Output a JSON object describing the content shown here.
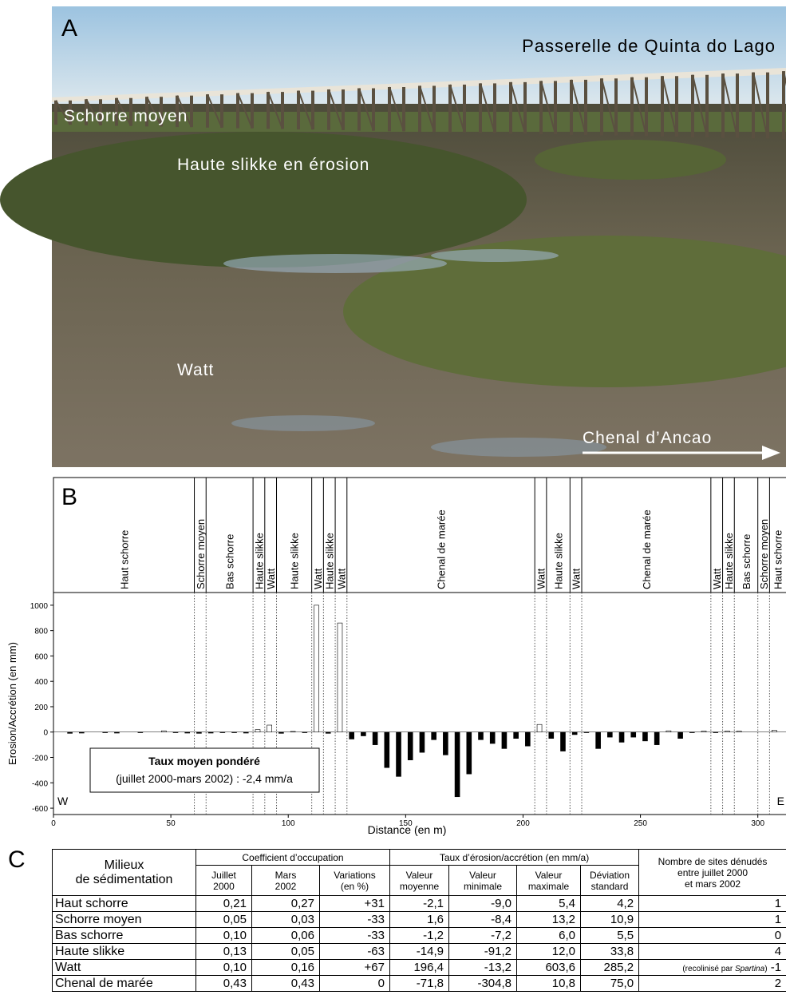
{
  "panel_a": {
    "label": "A",
    "title": "Passerelle de Quinta do Lago",
    "labels": [
      "Schorre moyen",
      "Haute slikke en érosion",
      "Watt"
    ],
    "arrow_label": "Chenal d’Ancao"
  },
  "chart_data": {
    "type": "bar",
    "label": "B",
    "x_label": "Distance (en m)",
    "y_label": "Erosion/Accrétion (en mm)",
    "annotation": {
      "title": "Taux moyen pondéré",
      "text": "(juillet 2000-mars 2002) : -2,4 mm/a"
    },
    "corner_left": "W",
    "corner_right": "E",
    "zones": [
      {
        "label": "Haut schorre",
        "start": 0,
        "end": 60
      },
      {
        "label": "Schorre moyen",
        "start": 60,
        "end": 65
      },
      {
        "label": "Bas schorre",
        "start": 65,
        "end": 85
      },
      {
        "label": "Haute slikke",
        "start": 85,
        "end": 90
      },
      {
        "label": "Watt",
        "start": 90,
        "end": 95
      },
      {
        "label": "Haute slikke",
        "start": 95,
        "end": 110
      },
      {
        "label": "Watt",
        "start": 110,
        "end": 115
      },
      {
        "label": "Haute slikke",
        "start": 115,
        "end": 120
      },
      {
        "label": "Watt",
        "start": 120,
        "end": 125
      },
      {
        "label": "Chenal de marée",
        "start": 125,
        "end": 205
      },
      {
        "label": "Watt",
        "start": 205,
        "end": 210
      },
      {
        "label": "Haute slikke",
        "start": 210,
        "end": 220
      },
      {
        "label": "Watt",
        "start": 220,
        "end": 225
      },
      {
        "label": "Chenal de marée",
        "start": 225,
        "end": 280
      },
      {
        "label": "Watt",
        "start": 280,
        "end": 285
      },
      {
        "label": "Haute slikke",
        "start": 285,
        "end": 290
      },
      {
        "label": "Bas schorre",
        "start": 290,
        "end": 300
      },
      {
        "label": "Schorre moyen",
        "start": 300,
        "end": 305
      },
      {
        "label": "Haut schorre",
        "start": 305,
        "end": 312
      }
    ],
    "x": [
      7,
      12,
      22,
      27,
      37,
      47,
      52,
      57,
      62,
      67,
      72,
      77,
      82,
      87,
      92,
      97,
      102,
      107,
      112,
      117,
      122,
      127,
      132,
      137,
      142,
      147,
      152,
      157,
      162,
      167,
      172,
      177,
      182,
      187,
      192,
      197,
      202,
      207,
      212,
      217,
      222,
      227,
      232,
      237,
      242,
      247,
      252,
      257,
      262,
      267,
      272,
      277,
      282,
      287,
      292,
      307
    ],
    "values": [
      -10,
      -8,
      -5,
      -8,
      -5,
      10,
      -5,
      -8,
      -10,
      -8,
      -5,
      -5,
      -8,
      20,
      55,
      -10,
      5,
      -5,
      1000,
      -10,
      860,
      -55,
      -30,
      -100,
      -280,
      -350,
      -220,
      -160,
      -60,
      -180,
      -510,
      -330,
      -60,
      -90,
      -130,
      -50,
      -110,
      60,
      -50,
      -150,
      -20,
      -5,
      -130,
      -40,
      -80,
      -40,
      -70,
      -100,
      10,
      -50,
      -5,
      8,
      -5,
      8,
      8,
      15
    ],
    "colors": {
      "positive": "#ffffff",
      "negative": "#000000",
      "outline": "#000000"
    },
    "xlim": [
      0,
      312
    ],
    "xticks": [
      0,
      50,
      100,
      150,
      200,
      250,
      300
    ],
    "ylim": [
      -650,
      1100
    ],
    "yticks": [
      -600,
      -400,
      -200,
      0,
      200,
      400,
      600,
      800,
      1000
    ]
  },
  "table": {
    "label": "C",
    "first_header": [
      "Milieux",
      "de sédimentation"
    ],
    "groups": [
      {
        "title": "Coefficient d’occupation",
        "columns": [
          [
            "Juillet",
            "2000"
          ],
          [
            "Mars",
            "2002"
          ],
          [
            "Variations",
            "(en %)"
          ]
        ]
      },
      {
        "title": "Taux d’érosion/accrétion (en mm/a)",
        "columns": [
          [
            "Valeur",
            "moyenne"
          ],
          [
            "Valeur",
            "minimale"
          ],
          [
            "Valeur",
            "maximale"
          ],
          [
            "Déviation",
            "standard"
          ]
        ]
      }
    ],
    "last_header": [
      "Nombre de sites dénudés",
      "entre juillet 2000",
      "et mars 2002"
    ],
    "rows": [
      [
        "Haut schorre",
        "0,21",
        "0,27",
        "+31",
        "-2,1",
        "-9,0",
        "5,4",
        "4,2",
        "1"
      ],
      [
        "Schorre moyen",
        "0,05",
        "0,03",
        "-33",
        "1,6",
        "-8,4",
        "13,2",
        "10,9",
        "1"
      ],
      [
        "Bas schorre",
        "0,10",
        "0,06",
        "-33",
        "-1,2",
        "-7,2",
        "6,0",
        "5,5",
        "0"
      ],
      [
        "Haute slikke",
        "0,13",
        "0,05",
        "-63",
        "-14,9",
        "-91,2",
        "12,0",
        "33,8",
        "4"
      ],
      [
        "Watt",
        "0,10",
        "0,16",
        "+67",
        "196,4",
        "-13,2",
        "603,6",
        "285,2",
        {
          "note": [
            "(recolinisé par ",
            "Spartina",
            ")"
          ],
          "value": "-1"
        }
      ],
      [
        "Chenal de marée",
        "0,43",
        "0,43",
        "0",
        "-71,8",
        "-304,8",
        "10,8",
        "75,0",
        "2"
      ]
    ]
  }
}
